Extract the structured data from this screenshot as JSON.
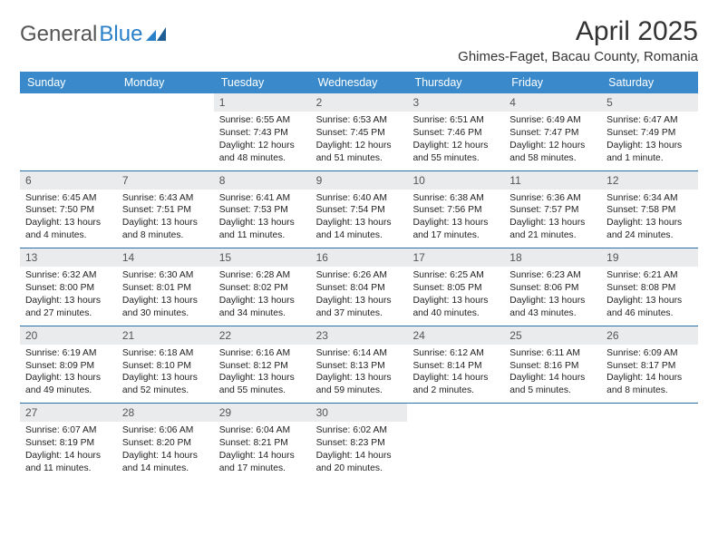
{
  "logo": {
    "part1": "General",
    "part2": "Blue"
  },
  "title": "April 2025",
  "location": "Ghimes-Faget, Bacau County, Romania",
  "day_headers": [
    "Sunday",
    "Monday",
    "Tuesday",
    "Wednesday",
    "Thursday",
    "Friday",
    "Saturday"
  ],
  "header_bg": "#3a8acb",
  "header_fg": "#ffffff",
  "daynum_bg": "#e9ebec",
  "week_border": "#2a6fa8",
  "weeks": [
    [
      null,
      null,
      {
        "n": "1",
        "sr": "Sunrise: 6:55 AM",
        "ss": "Sunset: 7:43 PM",
        "d1": "Daylight: 12 hours",
        "d2": "and 48 minutes."
      },
      {
        "n": "2",
        "sr": "Sunrise: 6:53 AM",
        "ss": "Sunset: 7:45 PM",
        "d1": "Daylight: 12 hours",
        "d2": "and 51 minutes."
      },
      {
        "n": "3",
        "sr": "Sunrise: 6:51 AM",
        "ss": "Sunset: 7:46 PM",
        "d1": "Daylight: 12 hours",
        "d2": "and 55 minutes."
      },
      {
        "n": "4",
        "sr": "Sunrise: 6:49 AM",
        "ss": "Sunset: 7:47 PM",
        "d1": "Daylight: 12 hours",
        "d2": "and 58 minutes."
      },
      {
        "n": "5",
        "sr": "Sunrise: 6:47 AM",
        "ss": "Sunset: 7:49 PM",
        "d1": "Daylight: 13 hours",
        "d2": "and 1 minute."
      }
    ],
    [
      {
        "n": "6",
        "sr": "Sunrise: 6:45 AM",
        "ss": "Sunset: 7:50 PM",
        "d1": "Daylight: 13 hours",
        "d2": "and 4 minutes."
      },
      {
        "n": "7",
        "sr": "Sunrise: 6:43 AM",
        "ss": "Sunset: 7:51 PM",
        "d1": "Daylight: 13 hours",
        "d2": "and 8 minutes."
      },
      {
        "n": "8",
        "sr": "Sunrise: 6:41 AM",
        "ss": "Sunset: 7:53 PM",
        "d1": "Daylight: 13 hours",
        "d2": "and 11 minutes."
      },
      {
        "n": "9",
        "sr": "Sunrise: 6:40 AM",
        "ss": "Sunset: 7:54 PM",
        "d1": "Daylight: 13 hours",
        "d2": "and 14 minutes."
      },
      {
        "n": "10",
        "sr": "Sunrise: 6:38 AM",
        "ss": "Sunset: 7:56 PM",
        "d1": "Daylight: 13 hours",
        "d2": "and 17 minutes."
      },
      {
        "n": "11",
        "sr": "Sunrise: 6:36 AM",
        "ss": "Sunset: 7:57 PM",
        "d1": "Daylight: 13 hours",
        "d2": "and 21 minutes."
      },
      {
        "n": "12",
        "sr": "Sunrise: 6:34 AM",
        "ss": "Sunset: 7:58 PM",
        "d1": "Daylight: 13 hours",
        "d2": "and 24 minutes."
      }
    ],
    [
      {
        "n": "13",
        "sr": "Sunrise: 6:32 AM",
        "ss": "Sunset: 8:00 PM",
        "d1": "Daylight: 13 hours",
        "d2": "and 27 minutes."
      },
      {
        "n": "14",
        "sr": "Sunrise: 6:30 AM",
        "ss": "Sunset: 8:01 PM",
        "d1": "Daylight: 13 hours",
        "d2": "and 30 minutes."
      },
      {
        "n": "15",
        "sr": "Sunrise: 6:28 AM",
        "ss": "Sunset: 8:02 PM",
        "d1": "Daylight: 13 hours",
        "d2": "and 34 minutes."
      },
      {
        "n": "16",
        "sr": "Sunrise: 6:26 AM",
        "ss": "Sunset: 8:04 PM",
        "d1": "Daylight: 13 hours",
        "d2": "and 37 minutes."
      },
      {
        "n": "17",
        "sr": "Sunrise: 6:25 AM",
        "ss": "Sunset: 8:05 PM",
        "d1": "Daylight: 13 hours",
        "d2": "and 40 minutes."
      },
      {
        "n": "18",
        "sr": "Sunrise: 6:23 AM",
        "ss": "Sunset: 8:06 PM",
        "d1": "Daylight: 13 hours",
        "d2": "and 43 minutes."
      },
      {
        "n": "19",
        "sr": "Sunrise: 6:21 AM",
        "ss": "Sunset: 8:08 PM",
        "d1": "Daylight: 13 hours",
        "d2": "and 46 minutes."
      }
    ],
    [
      {
        "n": "20",
        "sr": "Sunrise: 6:19 AM",
        "ss": "Sunset: 8:09 PM",
        "d1": "Daylight: 13 hours",
        "d2": "and 49 minutes."
      },
      {
        "n": "21",
        "sr": "Sunrise: 6:18 AM",
        "ss": "Sunset: 8:10 PM",
        "d1": "Daylight: 13 hours",
        "d2": "and 52 minutes."
      },
      {
        "n": "22",
        "sr": "Sunrise: 6:16 AM",
        "ss": "Sunset: 8:12 PM",
        "d1": "Daylight: 13 hours",
        "d2": "and 55 minutes."
      },
      {
        "n": "23",
        "sr": "Sunrise: 6:14 AM",
        "ss": "Sunset: 8:13 PM",
        "d1": "Daylight: 13 hours",
        "d2": "and 59 minutes."
      },
      {
        "n": "24",
        "sr": "Sunrise: 6:12 AM",
        "ss": "Sunset: 8:14 PM",
        "d1": "Daylight: 14 hours",
        "d2": "and 2 minutes."
      },
      {
        "n": "25",
        "sr": "Sunrise: 6:11 AM",
        "ss": "Sunset: 8:16 PM",
        "d1": "Daylight: 14 hours",
        "d2": "and 5 minutes."
      },
      {
        "n": "26",
        "sr": "Sunrise: 6:09 AM",
        "ss": "Sunset: 8:17 PM",
        "d1": "Daylight: 14 hours",
        "d2": "and 8 minutes."
      }
    ],
    [
      {
        "n": "27",
        "sr": "Sunrise: 6:07 AM",
        "ss": "Sunset: 8:19 PM",
        "d1": "Daylight: 14 hours",
        "d2": "and 11 minutes."
      },
      {
        "n": "28",
        "sr": "Sunrise: 6:06 AM",
        "ss": "Sunset: 8:20 PM",
        "d1": "Daylight: 14 hours",
        "d2": "and 14 minutes."
      },
      {
        "n": "29",
        "sr": "Sunrise: 6:04 AM",
        "ss": "Sunset: 8:21 PM",
        "d1": "Daylight: 14 hours",
        "d2": "and 17 minutes."
      },
      {
        "n": "30",
        "sr": "Sunrise: 6:02 AM",
        "ss": "Sunset: 8:23 PM",
        "d1": "Daylight: 14 hours",
        "d2": "and 20 minutes."
      },
      null,
      null,
      null
    ]
  ]
}
